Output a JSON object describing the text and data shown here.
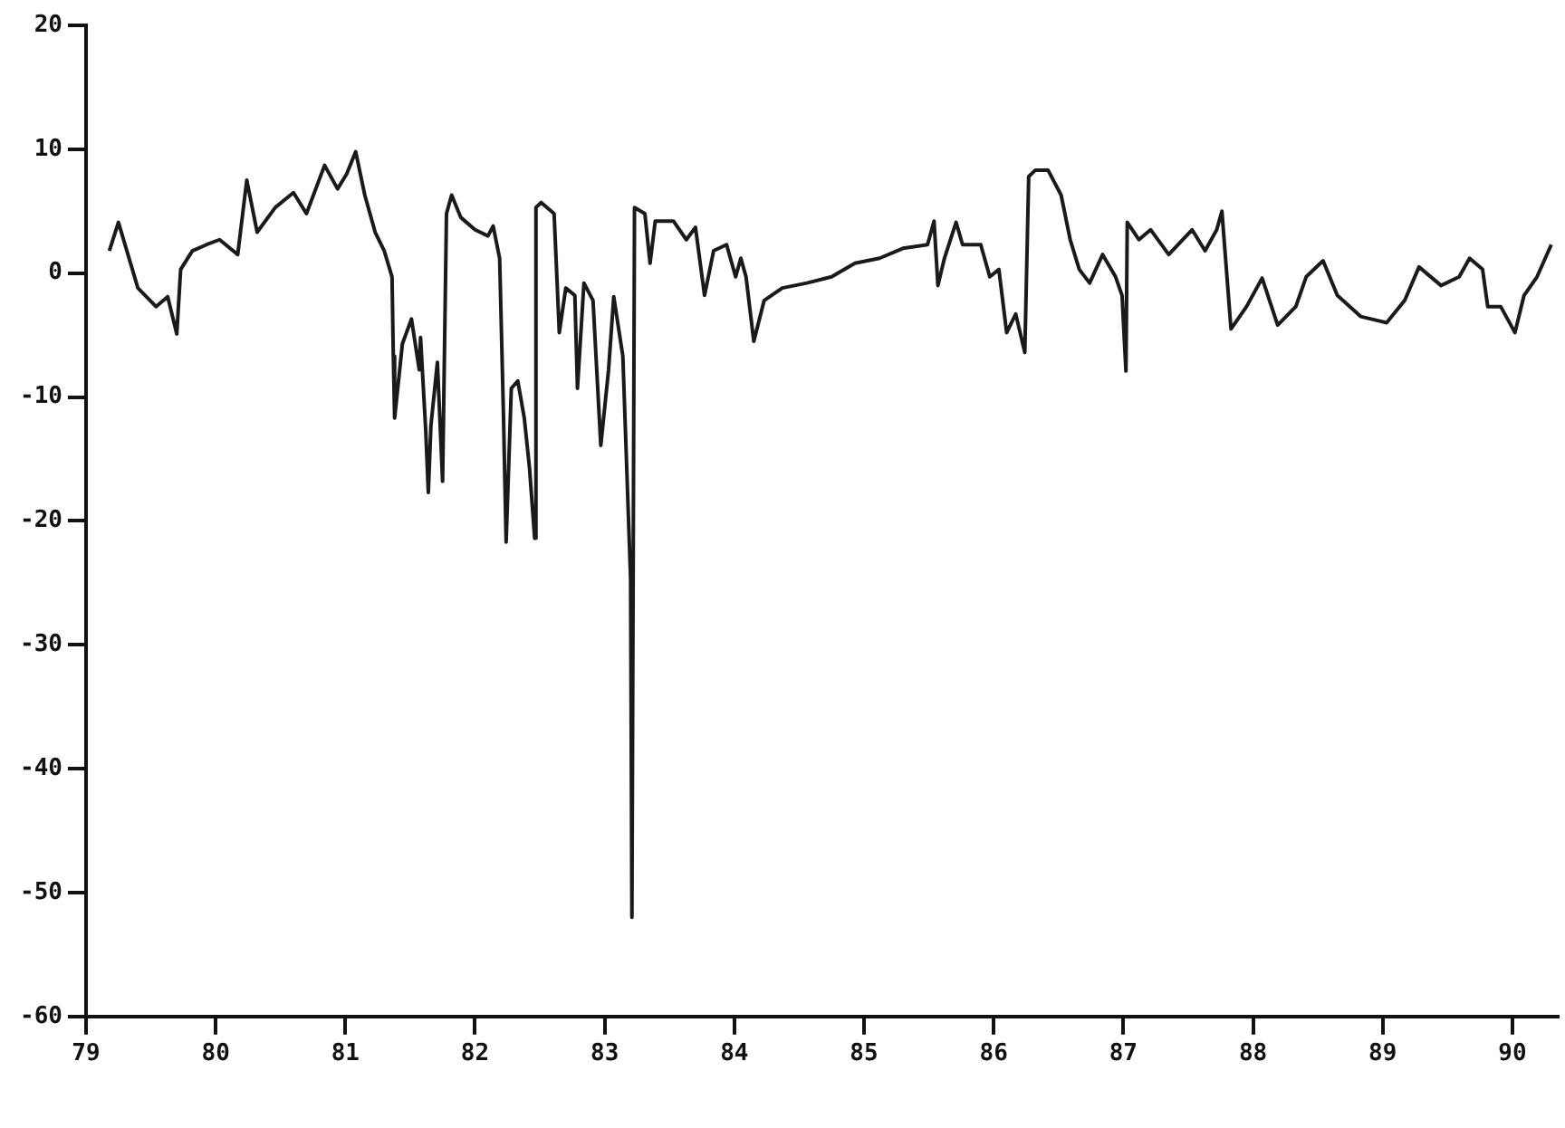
{
  "chart_data": {
    "type": "line",
    "xlim": [
      79,
      90.35
    ],
    "xticks": [
      79,
      80,
      81,
      82,
      83,
      84,
      85,
      86,
      87,
      88,
      89,
      90
    ],
    "ylim": [
      -60,
      20
    ],
    "yticks": [
      -60,
      -50,
      -40,
      -30,
      -20,
      -10,
      0,
      10,
      20
    ],
    "legend": false,
    "marker": "none",
    "line_style": "solid",
    "series": [
      {
        "color": "#1a1a1a",
        "x": [
          79.18,
          79.25,
          79.4,
          79.54,
          79.63,
          79.7,
          79.73,
          79.82,
          79.93,
          80.03,
          80.17,
          80.24,
          80.32,
          80.46,
          80.6,
          80.7,
          80.84,
          80.94,
          81.01,
          81.08,
          81.15,
          81.23,
          81.3,
          81.36,
          81.37,
          81.38,
          81.44,
          81.51,
          81.57,
          81.58,
          81.62,
          81.64,
          81.66,
          81.71,
          81.75,
          81.78,
          81.82,
          81.89,
          82.0,
          82.1,
          82.14,
          82.19,
          82.22,
          82.24,
          82.28,
          82.33,
          82.38,
          82.42,
          82.46,
          82.47,
          82.51,
          82.61,
          82.65,
          82.7,
          82.77,
          82.79,
          82.84,
          82.91,
          82.97,
          83.03,
          83.07,
          83.14,
          83.18,
          83.2,
          83.21,
          83.23,
          83.31,
          83.35,
          83.39,
          83.53,
          83.63,
          83.7,
          83.77,
          83.84,
          83.94,
          84.01,
          84.05,
          84.09,
          84.15,
          84.23,
          84.37,
          84.56,
          84.75,
          84.93,
          85.12,
          85.3,
          85.49,
          85.54,
          85.57,
          85.62,
          85.71,
          85.76,
          85.9,
          85.97,
          86.04,
          86.1,
          86.17,
          86.24,
          86.27,
          86.32,
          86.42,
          86.52,
          86.59,
          86.66,
          86.74,
          86.84,
          86.94,
          86.99,
          87.02,
          87.03,
          87.12,
          87.21,
          87.35,
          87.53,
          87.63,
          87.72,
          87.76,
          87.83,
          87.95,
          88.07,
          88.19,
          88.33,
          88.41,
          88.54,
          88.65,
          88.83,
          89.03,
          89.17,
          89.28,
          89.45,
          89.59,
          89.67,
          89.77,
          89.81,
          89.91,
          90.02,
          90.09,
          90.19,
          90.3
        ],
        "values": [
          1.8,
          4.1,
          -1.2,
          -2.7,
          -1.9,
          -4.9,
          0.3,
          1.8,
          2.3,
          2.7,
          1.5,
          7.5,
          3.3,
          5.3,
          6.5,
          4.8,
          8.7,
          6.8,
          8.0,
          9.8,
          6.3,
          3.3,
          1.8,
          -0.3,
          -6.7,
          -11.7,
          -5.7,
          -3.7,
          -7.8,
          -5.2,
          -12.7,
          -17.7,
          -12.3,
          -7.2,
          -16.8,
          4.8,
          6.3,
          4.5,
          3.5,
          3.0,
          3.8,
          1.2,
          -11.7,
          -21.7,
          -9.3,
          -8.7,
          -11.7,
          -15.7,
          -21.4,
          5.3,
          5.7,
          4.8,
          -4.8,
          -1.2,
          -1.8,
          -9.3,
          -0.8,
          -2.2,
          -13.9,
          -7.8,
          -1.9,
          -6.7,
          -18.7,
          -24.7,
          -52,
          5.3,
          4.8,
          0.8,
          4.2,
          4.2,
          2.7,
          3.7,
          -1.8,
          1.8,
          2.3,
          -0.3,
          1.2,
          -0.3,
          -5.5,
          -2.2,
          -1.2,
          -0.8,
          -0.3,
          0.8,
          1.2,
          2.0,
          2.3,
          4.2,
          -1.0,
          1.2,
          4.1,
          2.3,
          2.3,
          -0.3,
          0.3,
          -4.8,
          -3.3,
          -6.4,
          7.8,
          8.3,
          8.3,
          6.3,
          2.7,
          0.3,
          -0.8,
          1.5,
          -0.3,
          -1.8,
          -7.9,
          4.1,
          2.7,
          3.5,
          1.5,
          3.5,
          1.8,
          3.5,
          5.0,
          -4.5,
          -2.7,
          -0.4,
          -4.2,
          -2.7,
          -0.3,
          1.0,
          -1.8,
          -3.5,
          -4.0,
          -2.2,
          0.5,
          -1.0,
          -0.3,
          1.2,
          0.3,
          -2.7,
          -2.7,
          -4.8,
          -1.8,
          -0.3,
          2.3
        ]
      }
    ]
  }
}
